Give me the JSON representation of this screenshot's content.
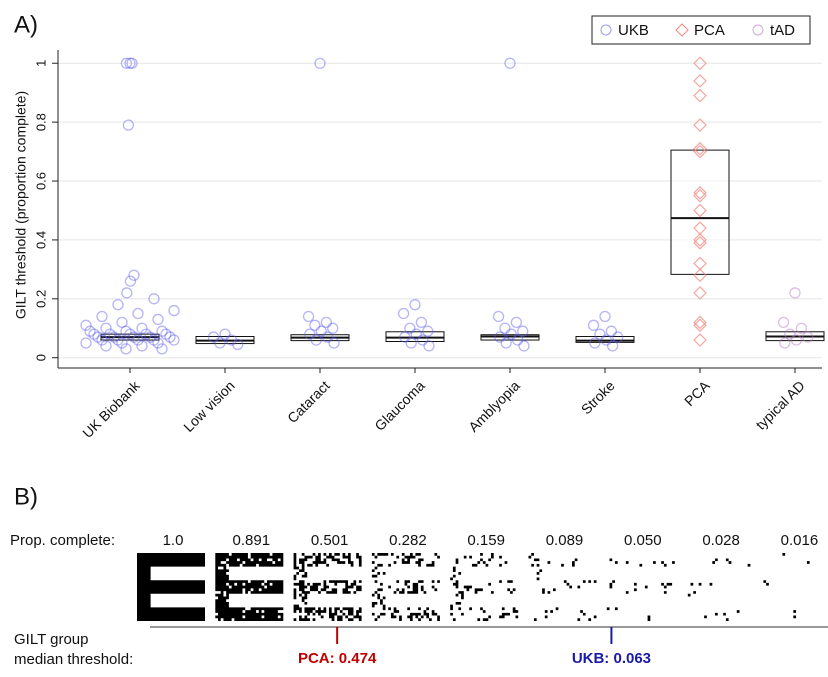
{
  "chart_data": [
    {
      "type": "box",
      "label": "A)",
      "ylabel": "GILT threshold (proportion complete)",
      "categories": [
        "UK Biobank",
        "Low vision",
        "Cataract",
        "Glaucoma",
        "Amblyopia",
        "Stroke",
        "PCA",
        "typical AD"
      ],
      "ylim": [
        -0.035,
        1.045
      ],
      "yticks": [
        0,
        0.2,
        0.4,
        0.6,
        0.8,
        1
      ],
      "grid": true,
      "legend": "top-right",
      "boxes": [
        {
          "q1": 0.06,
          "median": 0.07,
          "q3": 0.08
        },
        {
          "q1": 0.048,
          "median": 0.058,
          "q3": 0.072
        },
        {
          "q1": 0.058,
          "median": 0.068,
          "q3": 0.078
        },
        {
          "q1": 0.055,
          "median": 0.068,
          "q3": 0.088
        },
        {
          "q1": 0.06,
          "median": 0.072,
          "q3": 0.078
        },
        {
          "q1": 0.052,
          "median": 0.058,
          "q3": 0.072
        },
        {
          "q1": 0.283,
          "median": 0.474,
          "q3": 0.705
        },
        {
          "q1": 0.058,
          "median": 0.072,
          "q3": 0.088
        }
      ],
      "series": [
        {
          "name": "UKB",
          "color": "#5b5bf0",
          "marker": "circle",
          "values": [
            [
              1,
              1,
              1,
              0.79,
              0.28,
              0.26,
              0.22,
              0.2,
              0.18,
              0.16,
              0.15,
              0.14,
              0.13,
              0.12,
              0.11,
              0.1,
              0.1,
              0.09,
              0.09,
              0.09,
              0.08,
              0.08,
              0.08,
              0.08,
              0.08,
              0.07,
              0.07,
              0.07,
              0.07,
              0.07,
              0.06,
              0.06,
              0.06,
              0.06,
              0.06,
              0.05,
              0.05,
              0.05,
              0.04,
              0.04,
              0.03,
              0.03
            ],
            [
              0.08,
              0.07,
              0.06,
              0.05,
              0.045
            ],
            [
              1,
              0.14,
              0.12,
              0.11,
              0.1,
              0.09,
              0.08,
              0.07,
              0.06,
              0.05
            ],
            [
              0.18,
              0.15,
              0.12,
              0.1,
              0.09,
              0.08,
              0.07,
              0.06,
              0.05,
              0.04
            ],
            [
              1,
              0.14,
              0.12,
              0.1,
              0.09,
              0.08,
              0.07,
              0.06,
              0.05,
              0.04
            ],
            [
              0.14,
              0.11,
              0.09,
              0.08,
              0.07,
              0.06,
              0.05,
              0.04
            ],
            null,
            null
          ]
        },
        {
          "name": "PCA",
          "color": "#f08a80",
          "marker": "diamond",
          "values": [
            null,
            null,
            null,
            null,
            null,
            null,
            [
              1,
              0.94,
              0.89,
              0.79,
              0.71,
              0.7,
              0.56,
              0.55,
              0.5,
              0.44,
              0.4,
              0.39,
              0.32,
              0.28,
              0.22,
              0.12,
              0.11,
              0.06
            ],
            null
          ]
        },
        {
          "name": "tAD",
          "color": "#b070c0",
          "marker": "circle",
          "values": [
            null,
            null,
            null,
            null,
            null,
            null,
            null,
            [
              0.22,
              0.12,
              0.1,
              0.08,
              0.07,
              0.06,
              0.05
            ]
          ]
        }
      ]
    },
    {
      "type": "strip",
      "label": "B)",
      "row_label": "Prop. complete:",
      "values": [
        1.0,
        0.891,
        0.501,
        0.282,
        0.159,
        0.089,
        0.05,
        0.028,
        0.016
      ],
      "value_labels": [
        "1.0",
        "0.891",
        "0.501",
        "0.282",
        "0.159",
        "0.089",
        "0.050",
        "0.028",
        "0.016"
      ],
      "marker_label": [
        "GILT group",
        "median threshold:"
      ],
      "markers": [
        {
          "value": 0.474,
          "label": "PCA: 0.474",
          "color": "#c00000"
        },
        {
          "value": 0.063,
          "label": "UKB: 0.063",
          "color": "#1a1aa8"
        }
      ]
    }
  ]
}
